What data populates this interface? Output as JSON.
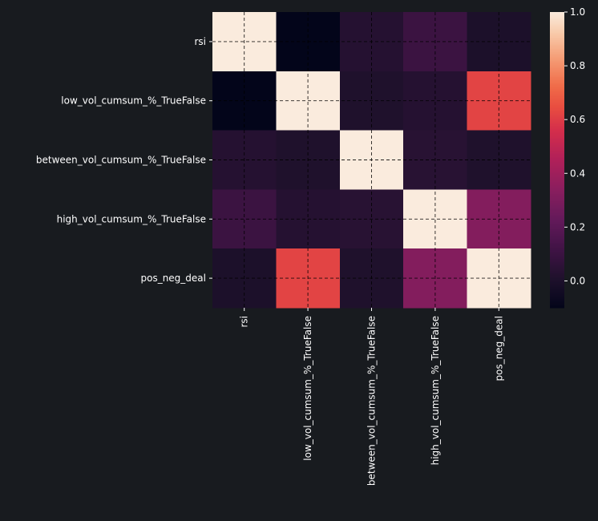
{
  "chart_data": {
    "type": "heatmap",
    "title": "",
    "xlabel": "",
    "ylabel": "",
    "rows": [
      "rsi",
      "low_vol_cumsum_%_TrueFalse",
      "between_vol_cumsum_%_TrueFalse",
      "high_vol_cumsum_%_TrueFalse",
      "pos_neg_deal"
    ],
    "columns": [
      "rsi",
      "low_vol_cumsum_%_TrueFalse",
      "between_vol_cumsum_%_TrueFalse",
      "high_vol_cumsum_%_TrueFalse",
      "pos_neg_deal"
    ],
    "values": [
      [
        1.0,
        -0.1,
        0.03,
        0.1,
        0.0
      ],
      [
        -0.1,
        1.0,
        0.01,
        0.03,
        0.62
      ],
      [
        0.03,
        0.01,
        1.0,
        0.04,
        0.01
      ],
      [
        0.1,
        0.03,
        0.04,
        1.0,
        0.32
      ],
      [
        0.0,
        0.62,
        0.01,
        0.32,
        1.0
      ]
    ],
    "colormap": "rocket",
    "vmin": -0.1,
    "vmax": 1.0,
    "colorbar": {
      "ticks": [
        0.0,
        0.2,
        0.4,
        0.6,
        0.8,
        1.0
      ],
      "tick_labels": [
        "0.0",
        "0.2",
        "0.4",
        "0.6",
        "0.8",
        "1.0"
      ]
    },
    "grid": true,
    "grid_style": "dashed",
    "legend": "colorbar-right"
  },
  "colors": {
    "background": "#181b1f",
    "text": "#ffffff",
    "grid": "#000000"
  }
}
